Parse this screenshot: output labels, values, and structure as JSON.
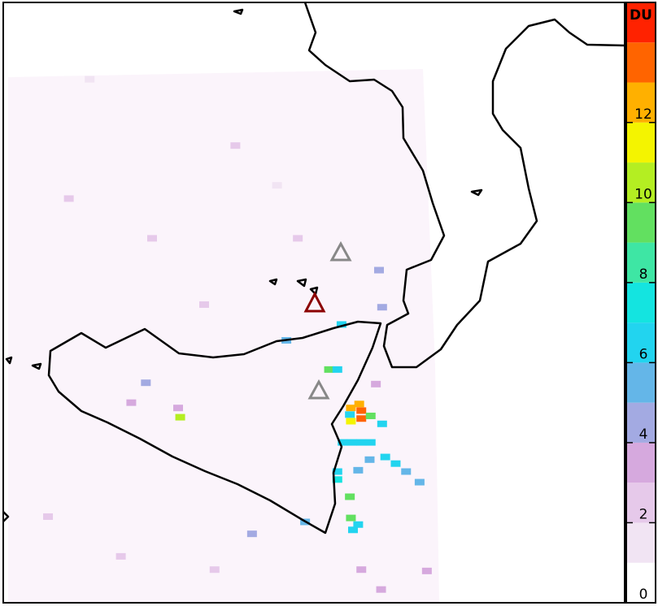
{
  "chart_data": {
    "type": "map",
    "lonlim": [
      11.97,
      17.94
    ],
    "latlim": [
      36.15,
      40.68
    ],
    "colorbar": {
      "label": "DU",
      "lim": [
        0,
        15
      ],
      "ticks": [
        0,
        2,
        4,
        6,
        8,
        10,
        12
      ],
      "colors": [
        "#ffffff",
        "#f1e4f3",
        "#e6c9ea",
        "#d6a9de",
        "#a3aae2",
        "#64b6e8",
        "#22d4ef",
        "#14e4e0",
        "#3ee6a4",
        "#62e060",
        "#b4ee22",
        "#f4f400",
        "#ffb000",
        "#ff6400",
        "#ff2200"
      ]
    },
    "pixels": [
      {
        "lon": 15.41,
        "lat": 37.6,
        "value": 13.5
      },
      {
        "lon": 15.41,
        "lat": 37.54,
        "value": 13.5
      },
      {
        "lon": 15.39,
        "lat": 37.65,
        "value": 12.5
      },
      {
        "lon": 15.31,
        "lat": 37.62,
        "value": 12.5
      },
      {
        "lon": 15.31,
        "lat": 37.52,
        "value": 11.5
      },
      {
        "lon": 15.5,
        "lat": 37.56,
        "value": 9
      },
      {
        "lon": 15.3,
        "lat": 37.57,
        "value": 6.5
      },
      {
        "lon": 15.23,
        "lat": 37.36,
        "value": 6.5
      },
      {
        "lon": 15.32,
        "lat": 37.36,
        "value": 6.5
      },
      {
        "lon": 15.41,
        "lat": 37.36,
        "value": 6.5
      },
      {
        "lon": 15.5,
        "lat": 37.36,
        "value": 6.5
      },
      {
        "lon": 15.61,
        "lat": 37.5,
        "value": 6.5
      },
      {
        "lon": 15.64,
        "lat": 37.25,
        "value": 6.5
      },
      {
        "lon": 15.74,
        "lat": 37.2,
        "value": 6
      },
      {
        "lon": 15.49,
        "lat": 37.23,
        "value": 5
      },
      {
        "lon": 15.38,
        "lat": 37.15,
        "value": 5
      },
      {
        "lon": 15.18,
        "lat": 37.14,
        "value": 6.5
      },
      {
        "lon": 15.18,
        "lat": 37.08,
        "value": 7.5
      },
      {
        "lon": 15.84,
        "lat": 37.14,
        "value": 5
      },
      {
        "lon": 15.97,
        "lat": 37.06,
        "value": 5
      },
      {
        "lon": 15.3,
        "lat": 36.95,
        "value": 9
      },
      {
        "lon": 15.31,
        "lat": 36.79,
        "value": 9
      },
      {
        "lon": 15.33,
        "lat": 36.7,
        "value": 6.5
      },
      {
        "lon": 15.38,
        "lat": 36.74,
        "value": 6.5
      },
      {
        "lon": 14.87,
        "lat": 36.76,
        "value": 5
      },
      {
        "lon": 14.36,
        "lat": 36.67,
        "value": 4.5
      },
      {
        "lon": 13.67,
        "lat": 37.55,
        "value": 10.5
      },
      {
        "lon": 13.34,
        "lat": 37.81,
        "value": 4.5
      },
      {
        "lon": 15.1,
        "lat": 37.91,
        "value": 9
      },
      {
        "lon": 15.18,
        "lat": 37.91,
        "value": 6.5
      },
      {
        "lon": 15.22,
        "lat": 38.25,
        "value": 6
      },
      {
        "lon": 14.69,
        "lat": 38.13,
        "value": 5
      },
      {
        "lon": 15.58,
        "lat": 38.66,
        "value": 4.5
      },
      {
        "lon": 15.61,
        "lat": 38.38,
        "value": 4.5
      },
      {
        "lon": 15.41,
        "lat": 36.4,
        "value": 3.5
      },
      {
        "lon": 16.04,
        "lat": 36.39,
        "value": 3.5
      },
      {
        "lon": 13.2,
        "lat": 37.66,
        "value": 3
      },
      {
        "lon": 13.65,
        "lat": 37.62,
        "value": 3
      },
      {
        "lon": 12.6,
        "lat": 39.2,
        "value": 2.5
      },
      {
        "lon": 13.4,
        "lat": 38.9,
        "value": 2
      },
      {
        "lon": 14.2,
        "lat": 39.6,
        "value": 2
      },
      {
        "lon": 14.8,
        "lat": 38.9,
        "value": 2.5
      },
      {
        "lon": 12.4,
        "lat": 36.8,
        "value": 2
      },
      {
        "lon": 13.1,
        "lat": 36.5,
        "value": 2.5
      },
      {
        "lon": 14.0,
        "lat": 36.4,
        "value": 2
      },
      {
        "lon": 15.6,
        "lat": 36.25,
        "value": 3
      },
      {
        "lon": 15.55,
        "lat": 37.8,
        "value": 3
      },
      {
        "lon": 13.9,
        "lat": 38.4,
        "value": 2
      },
      {
        "lon": 12.8,
        "lat": 40.1,
        "value": 1.5
      },
      {
        "lon": 14.6,
        "lat": 39.3,
        "value": 1.5
      }
    ]
  }
}
